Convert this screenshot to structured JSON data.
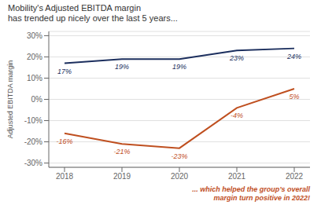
{
  "chart_data": {
    "type": "line",
    "title": "Mobility's Adjusted EBITDA margin",
    "subtitle": "has trended up nicely over the last 5 years...",
    "ylabel": "Adjusted EBITDA margin",
    "annotations": [
      "... which helped the group’s overall",
      "margin turn positive in 2022!"
    ],
    "categories": [
      "2018",
      "2019",
      "2020",
      "2021",
      "2022"
    ],
    "series": [
      {
        "color": "#1c2f5e",
        "values": [
          17,
          19,
          19,
          23,
          24
        ],
        "value_labels": [
          "17%",
          "19%",
          "19%",
          "23%",
          "24%"
        ]
      },
      {
        "color": "#bf4f1f",
        "values": [
          -16,
          -21,
          -23,
          -4,
          5
        ],
        "value_labels": [
          "-16%",
          "-21%",
          "-23%",
          "-4%",
          "5%"
        ]
      }
    ],
    "ylim": [
      -32,
      32
    ],
    "yticks": [
      {
        "value": -30,
        "label": "-30%"
      },
      {
        "value": -20,
        "label": "-20%"
      },
      {
        "value": -10,
        "label": "-10%"
      },
      {
        "value": 0,
        "label": "0%"
      },
      {
        "value": 10,
        "label": "10%"
      },
      {
        "value": 20,
        "label": "20%"
      },
      {
        "value": 30,
        "label": "30%"
      }
    ],
    "grid": true,
    "data_labels": true
  }
}
